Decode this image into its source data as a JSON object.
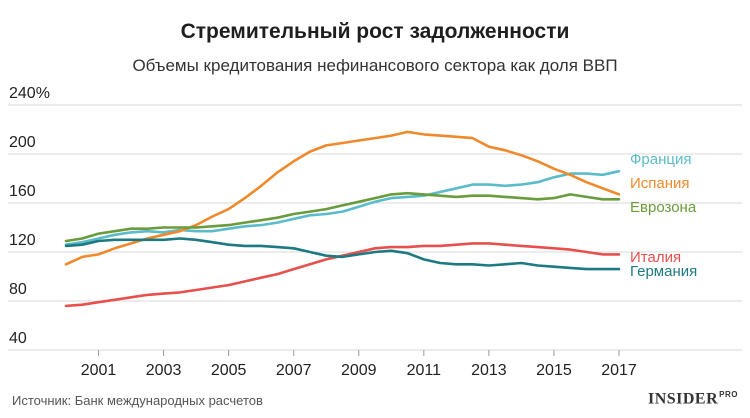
{
  "chart_data": {
    "type": "line",
    "title": "Стремительный рост задолженности",
    "subtitle": "Объемы кредитования нефинансового сектора как доля ВВП",
    "xlabel": "",
    "ylabel": "",
    "xlim": [
      2000,
      2017.5
    ],
    "ylim": [
      40,
      240
    ],
    "x_ticks": [
      {
        "v": 2001,
        "label": "2001"
      },
      {
        "v": 2003,
        "label": "2003"
      },
      {
        "v": 2005,
        "label": "2005"
      },
      {
        "v": 2007,
        "label": "2007"
      },
      {
        "v": 2009,
        "label": "2009"
      },
      {
        "v": 2011,
        "label": "2011"
      },
      {
        "v": 2013,
        "label": "2013"
      },
      {
        "v": 2015,
        "label": "2015"
      },
      {
        "v": 2017,
        "label": "2017"
      }
    ],
    "y_ticks": [
      {
        "v": 40,
        "label": "40"
      },
      {
        "v": 80,
        "label": "80"
      },
      {
        "v": 120,
        "label": "120"
      },
      {
        "v": 160,
        "label": "160"
      },
      {
        "v": 200,
        "label": "200"
      },
      {
        "v": 240,
        "label": "240%"
      }
    ],
    "grid": true,
    "legend": "right",
    "series": [
      {
        "name": "Франция",
        "color": "#5bbcc9",
        "points": [
          [
            2000,
            126
          ],
          [
            2000.5,
            128
          ],
          [
            2001,
            131
          ],
          [
            2001.5,
            134
          ],
          [
            2002,
            136
          ],
          [
            2002.5,
            137
          ],
          [
            2003,
            136
          ],
          [
            2003.5,
            138
          ],
          [
            2004,
            137
          ],
          [
            2004.5,
            137
          ],
          [
            2005,
            139
          ],
          [
            2005.5,
            141
          ],
          [
            2006,
            142
          ],
          [
            2006.5,
            144
          ],
          [
            2007,
            147
          ],
          [
            2007.5,
            150
          ],
          [
            2008,
            151
          ],
          [
            2008.5,
            153
          ],
          [
            2009,
            157
          ],
          [
            2009.5,
            161
          ],
          [
            2010,
            164
          ],
          [
            2010.5,
            165
          ],
          [
            2011,
            166
          ],
          [
            2011.5,
            169
          ],
          [
            2012,
            172
          ],
          [
            2012.5,
            175
          ],
          [
            2013,
            175
          ],
          [
            2013.5,
            174
          ],
          [
            2014,
            175
          ],
          [
            2014.5,
            177
          ],
          [
            2015,
            181
          ],
          [
            2015.5,
            184
          ],
          [
            2016,
            184
          ],
          [
            2016.5,
            183
          ],
          [
            2017,
            186
          ]
        ]
      },
      {
        "name": "Испания",
        "color": "#f0892b",
        "points": [
          [
            2000,
            110
          ],
          [
            2000.5,
            116
          ],
          [
            2001,
            118
          ],
          [
            2001.5,
            123
          ],
          [
            2002,
            127
          ],
          [
            2002.5,
            131
          ],
          [
            2003,
            134
          ],
          [
            2003.5,
            137
          ],
          [
            2004,
            142
          ],
          [
            2004.5,
            149
          ],
          [
            2005,
            155
          ],
          [
            2005.5,
            164
          ],
          [
            2006,
            174
          ],
          [
            2006.5,
            185
          ],
          [
            2007,
            194
          ],
          [
            2007.5,
            202
          ],
          [
            2008,
            207
          ],
          [
            2008.5,
            209
          ],
          [
            2009,
            211
          ],
          [
            2009.5,
            213
          ],
          [
            2010,
            215
          ],
          [
            2010.5,
            218
          ],
          [
            2011,
            216
          ],
          [
            2011.5,
            215
          ],
          [
            2012,
            214
          ],
          [
            2012.5,
            213
          ],
          [
            2013,
            206
          ],
          [
            2013.5,
            203
          ],
          [
            2014,
            199
          ],
          [
            2014.5,
            194
          ],
          [
            2015,
            188
          ],
          [
            2015.5,
            183
          ],
          [
            2016,
            177
          ],
          [
            2016.5,
            172
          ],
          [
            2017,
            167
          ]
        ]
      },
      {
        "name": "Еврозона",
        "color": "#6a9b3c",
        "points": [
          [
            2000,
            129
          ],
          [
            2000.5,
            131
          ],
          [
            2001,
            135
          ],
          [
            2001.5,
            137
          ],
          [
            2002,
            139
          ],
          [
            2002.5,
            139
          ],
          [
            2003,
            140
          ],
          [
            2003.5,
            140
          ],
          [
            2004,
            140
          ],
          [
            2004.5,
            141
          ],
          [
            2005,
            142
          ],
          [
            2005.5,
            144
          ],
          [
            2006,
            146
          ],
          [
            2006.5,
            148
          ],
          [
            2007,
            151
          ],
          [
            2007.5,
            153
          ],
          [
            2008,
            155
          ],
          [
            2008.5,
            158
          ],
          [
            2009,
            161
          ],
          [
            2009.5,
            164
          ],
          [
            2010,
            167
          ],
          [
            2010.5,
            168
          ],
          [
            2011,
            167
          ],
          [
            2011.5,
            166
          ],
          [
            2012,
            165
          ],
          [
            2012.5,
            166
          ],
          [
            2013,
            166
          ],
          [
            2013.5,
            165
          ],
          [
            2014,
            164
          ],
          [
            2014.5,
            163
          ],
          [
            2015,
            164
          ],
          [
            2015.5,
            167
          ],
          [
            2016,
            165
          ],
          [
            2016.5,
            163
          ],
          [
            2017,
            163
          ]
        ]
      },
      {
        "name": "Италия",
        "color": "#e8504e",
        "points": [
          [
            2000,
            76
          ],
          [
            2000.5,
            77
          ],
          [
            2001,
            79
          ],
          [
            2001.5,
            81
          ],
          [
            2002,
            83
          ],
          [
            2002.5,
            85
          ],
          [
            2003,
            86
          ],
          [
            2003.5,
            87
          ],
          [
            2004,
            89
          ],
          [
            2004.5,
            91
          ],
          [
            2005,
            93
          ],
          [
            2005.5,
            96
          ],
          [
            2006,
            99
          ],
          [
            2006.5,
            102
          ],
          [
            2007,
            106
          ],
          [
            2007.5,
            110
          ],
          [
            2008,
            114
          ],
          [
            2008.5,
            117
          ],
          [
            2009,
            120
          ],
          [
            2009.5,
            123
          ],
          [
            2010,
            124
          ],
          [
            2010.5,
            124
          ],
          [
            2011,
            125
          ],
          [
            2011.5,
            125
          ],
          [
            2012,
            126
          ],
          [
            2012.5,
            127
          ],
          [
            2013,
            127
          ],
          [
            2013.5,
            126
          ],
          [
            2014,
            125
          ],
          [
            2014.5,
            124
          ],
          [
            2015,
            123
          ],
          [
            2015.5,
            122
          ],
          [
            2016,
            120
          ],
          [
            2016.5,
            118
          ],
          [
            2017,
            118
          ]
        ]
      },
      {
        "name": "Германия",
        "color": "#1d7a80",
        "points": [
          [
            2000,
            125
          ],
          [
            2000.5,
            126
          ],
          [
            2001,
            129
          ],
          [
            2001.5,
            130
          ],
          [
            2002,
            130
          ],
          [
            2002.5,
            130
          ],
          [
            2003,
            130
          ],
          [
            2003.5,
            131
          ],
          [
            2004,
            130
          ],
          [
            2004.5,
            128
          ],
          [
            2005,
            126
          ],
          [
            2005.5,
            125
          ],
          [
            2006,
            125
          ],
          [
            2006.5,
            124
          ],
          [
            2007,
            123
          ],
          [
            2007.5,
            120
          ],
          [
            2008,
            117
          ],
          [
            2008.5,
            116
          ],
          [
            2009,
            118
          ],
          [
            2009.5,
            120
          ],
          [
            2010,
            121
          ],
          [
            2010.5,
            119
          ],
          [
            2011,
            114
          ],
          [
            2011.5,
            111
          ],
          [
            2012,
            110
          ],
          [
            2012.5,
            110
          ],
          [
            2013,
            109
          ],
          [
            2013.5,
            110
          ],
          [
            2014,
            111
          ],
          [
            2014.5,
            109
          ],
          [
            2015,
            108
          ],
          [
            2015.5,
            107
          ],
          [
            2016,
            106
          ],
          [
            2016.5,
            106
          ],
          [
            2017,
            106
          ]
        ]
      }
    ]
  },
  "footer": {
    "source": "Источник: Банк международных расчетов",
    "brand": "INSIDER",
    "brand_suffix": "PRO"
  }
}
